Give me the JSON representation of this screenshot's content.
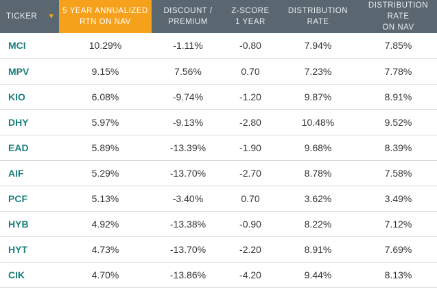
{
  "headers": {
    "ticker": "TICKER",
    "sort_arrow": "▼",
    "rtn": [
      "5 YEAR ANNUALIZED",
      "RTN ON NAV"
    ],
    "discount": [
      "DISCOUNT /",
      "PREMIUM"
    ],
    "zscore": [
      "Z-SCORE",
      "1 YEAR"
    ],
    "dist": [
      "DISTRIBUTION",
      "RATE"
    ],
    "distnav": [
      "DISTRIBUTION RATE",
      "ON NAV"
    ]
  },
  "rows": [
    {
      "ticker": "MCI",
      "rtn": "10.29%",
      "discount": "-1.11%",
      "zscore": "-0.80",
      "dist": "7.94%",
      "distnav": "7.85%"
    },
    {
      "ticker": "MPV",
      "rtn": "9.15%",
      "discount": "7.56%",
      "zscore": "0.70",
      "dist": "7.23%",
      "distnav": "7.78%"
    },
    {
      "ticker": "KIO",
      "rtn": "6.08%",
      "discount": "-9.74%",
      "zscore": "-1.20",
      "dist": "9.87%",
      "distnav": "8.91%"
    },
    {
      "ticker": "DHY",
      "rtn": "5.97%",
      "discount": "-9.13%",
      "zscore": "-2.80",
      "dist": "10.48%",
      "distnav": "9.52%"
    },
    {
      "ticker": "EAD",
      "rtn": "5.89%",
      "discount": "-13.39%",
      "zscore": "-1.90",
      "dist": "9.68%",
      "distnav": "8.39%"
    },
    {
      "ticker": "AIF",
      "rtn": "5.29%",
      "discount": "-13.70%",
      "zscore": "-2.70",
      "dist": "8.78%",
      "distnav": "7.58%"
    },
    {
      "ticker": "PCF",
      "rtn": "5.13%",
      "discount": "-3.40%",
      "zscore": "0.70",
      "dist": "3.62%",
      "distnav": "3.49%"
    },
    {
      "ticker": "HYB",
      "rtn": "4.92%",
      "discount": "-13.38%",
      "zscore": "-0.90",
      "dist": "8.22%",
      "distnav": "7.12%"
    },
    {
      "ticker": "HYT",
      "rtn": "4.73%",
      "discount": "-13.70%",
      "zscore": "-2.20",
      "dist": "8.91%",
      "distnav": "7.69%"
    },
    {
      "ticker": "CIK",
      "rtn": "4.70%",
      "discount": "-13.86%",
      "zscore": "-4.20",
      "dist": "9.44%",
      "distnav": "8.13%"
    }
  ],
  "colors": {
    "header_bg": "#5b6770",
    "sort_accent": "#f5a11c",
    "ticker_text": "#1b7f7a",
    "row_border": "#d9d9d9"
  }
}
